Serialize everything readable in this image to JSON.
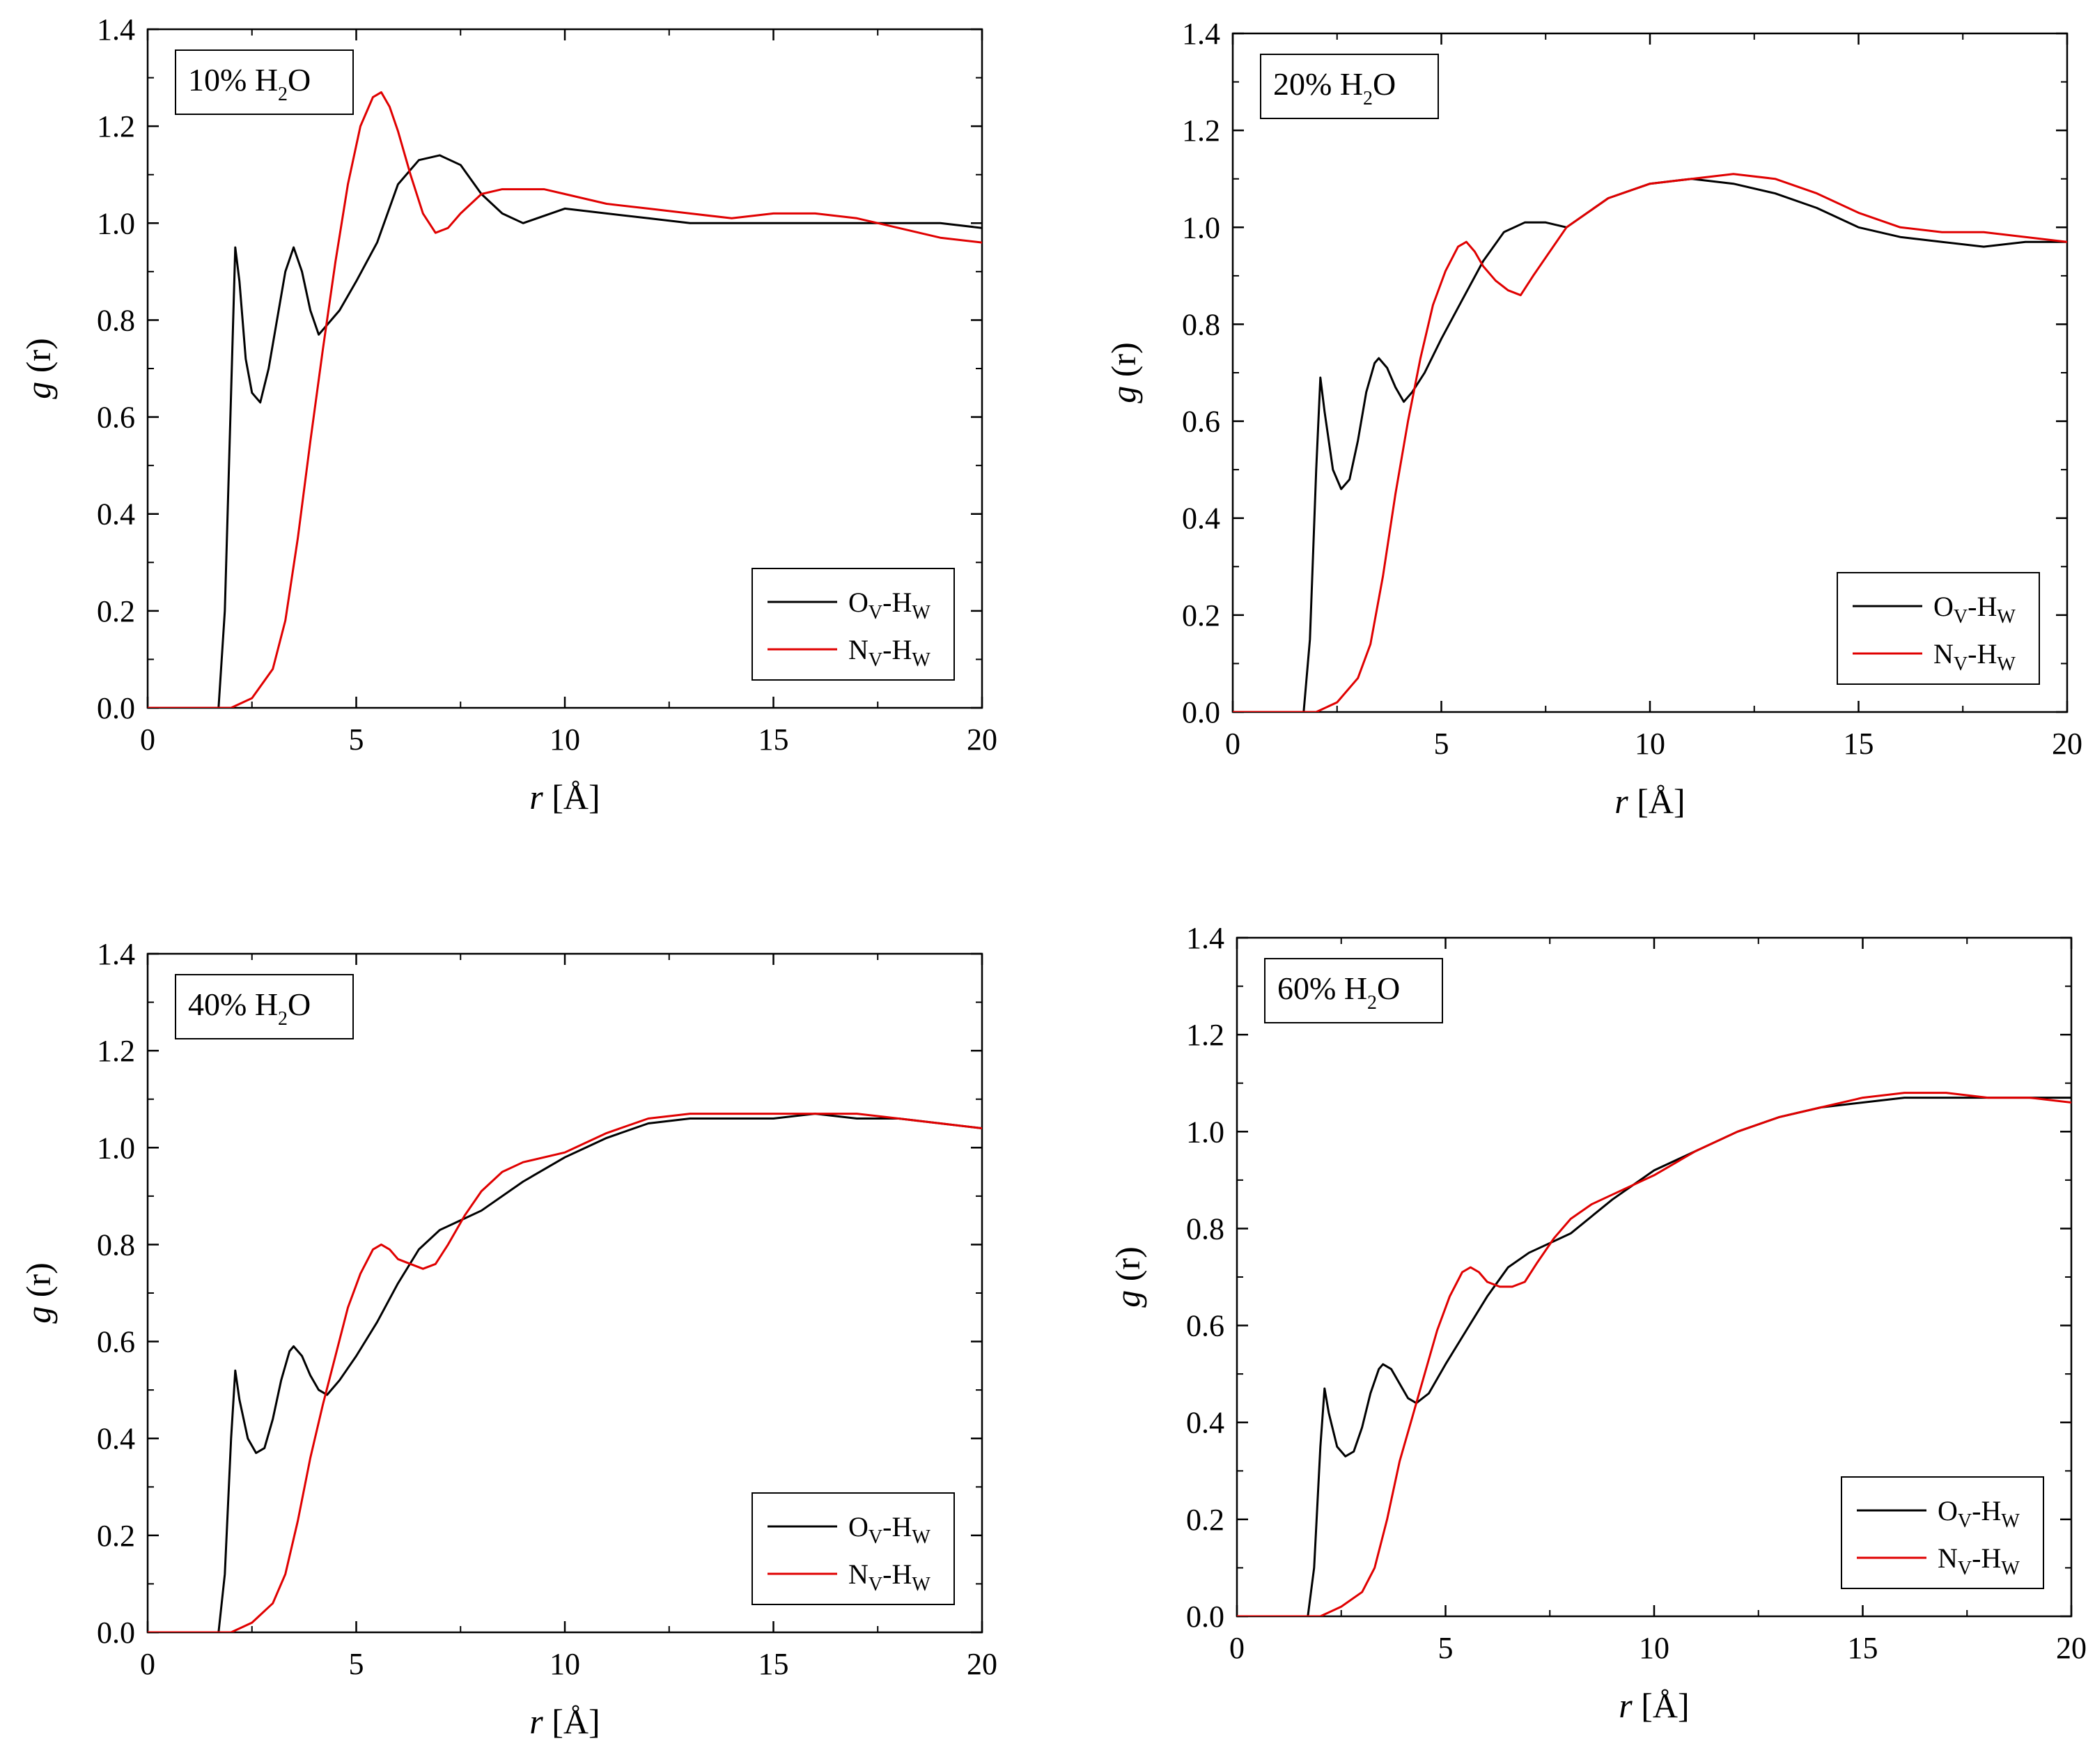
{
  "figure": {
    "colors": {
      "O_series": "#000000",
      "N_series": "#e00000",
      "axis": "#000000"
    },
    "legend_position": "bottom-right",
    "panel_label_position": "top-left"
  },
  "chart_data": [
    {
      "type": "line",
      "panel_label": {
        "main": "10% H",
        "sub": "2",
        "tail": "O"
      },
      "xlabel": {
        "italic": "r",
        "rest": " [Å]"
      },
      "ylabel": {
        "italic": "g",
        "rest": " (r)"
      },
      "xlim": [
        0,
        20
      ],
      "ylim": [
        0,
        1.4
      ],
      "xticks": [
        "0",
        "5",
        "10",
        "15",
        "20"
      ],
      "yticks": [
        "0.0",
        "0.2",
        "0.4",
        "0.6",
        "0.8",
        "1.0",
        "1.2",
        "1.4"
      ],
      "series": [
        {
          "name": "OV-HW",
          "legend": {
            "a": "O",
            "a_sub": "V",
            "b": "-H",
            "b_sub": "W"
          },
          "color": "#000000",
          "x": [
            0,
            1.7,
            1.85,
            2.0,
            2.1,
            2.2,
            2.35,
            2.5,
            2.7,
            2.9,
            3.1,
            3.3,
            3.5,
            3.7,
            3.9,
            4.1,
            4.3,
            4.6,
            5.0,
            5.5,
            6.0,
            6.5,
            7.0,
            7.5,
            8.0,
            8.5,
            9.0,
            10.0,
            11.0,
            12.0,
            13.0,
            14.0,
            15.0,
            16.0,
            17.0,
            18.0,
            19.0,
            20.0
          ],
          "y": [
            0,
            0,
            0.2,
            0.65,
            0.95,
            0.88,
            0.72,
            0.65,
            0.63,
            0.7,
            0.8,
            0.9,
            0.95,
            0.9,
            0.82,
            0.77,
            0.79,
            0.82,
            0.88,
            0.96,
            1.08,
            1.13,
            1.14,
            1.12,
            1.06,
            1.02,
            1.0,
            1.03,
            1.02,
            1.01,
            1.0,
            1.0,
            1.0,
            1.0,
            1.0,
            1.0,
            1.0,
            0.99
          ]
        },
        {
          "name": "NV-HW",
          "legend": {
            "a": "N",
            "a_sub": "V",
            "b": "-H",
            "b_sub": "W"
          },
          "color": "#e00000",
          "x": [
            0,
            2.0,
            2.5,
            3.0,
            3.3,
            3.6,
            3.9,
            4.2,
            4.5,
            4.8,
            5.1,
            5.4,
            5.6,
            5.8,
            6.0,
            6.3,
            6.6,
            6.9,
            7.2,
            7.5,
            8.0,
            8.5,
            9.0,
            9.5,
            10.0,
            11.0,
            12.0,
            13.0,
            14.0,
            15.0,
            16.0,
            17.0,
            18.0,
            19.0,
            20.0
          ],
          "y": [
            0,
            0,
            0.02,
            0.08,
            0.18,
            0.35,
            0.55,
            0.74,
            0.92,
            1.08,
            1.2,
            1.26,
            1.27,
            1.24,
            1.19,
            1.1,
            1.02,
            0.98,
            0.99,
            1.02,
            1.06,
            1.07,
            1.07,
            1.07,
            1.06,
            1.04,
            1.03,
            1.02,
            1.01,
            1.02,
            1.02,
            1.01,
            0.99,
            0.97,
            0.96
          ]
        }
      ]
    },
    {
      "type": "line",
      "panel_label": {
        "main": "20% H",
        "sub": "2",
        "tail": "O"
      },
      "xlabel": {
        "italic": "r",
        "rest": " [Å]"
      },
      "ylabel": {
        "italic": "g",
        "rest": " (r)"
      },
      "xlim": [
        0,
        20
      ],
      "ylim": [
        0,
        1.4
      ],
      "xticks": [
        "0",
        "5",
        "10",
        "15",
        "20"
      ],
      "yticks": [
        "0.0",
        "0.2",
        "0.4",
        "0.6",
        "0.8",
        "1.0",
        "1.2",
        "1.4"
      ],
      "series": [
        {
          "name": "OV-HW",
          "legend": {
            "a": "O",
            "a_sub": "V",
            "b": "-H",
            "b_sub": "W"
          },
          "color": "#000000",
          "x": [
            0,
            1.7,
            1.85,
            2.0,
            2.1,
            2.2,
            2.4,
            2.6,
            2.8,
            3.0,
            3.2,
            3.4,
            3.5,
            3.7,
            3.9,
            4.1,
            4.3,
            4.6,
            5.0,
            5.5,
            6.0,
            6.5,
            7.0,
            7.5,
            8.0,
            9.0,
            10.0,
            11.0,
            12.0,
            13.0,
            14.0,
            15.0,
            16.0,
            17.0,
            18.0,
            19.0,
            20.0
          ],
          "y": [
            0,
            0,
            0.15,
            0.5,
            0.69,
            0.62,
            0.5,
            0.46,
            0.48,
            0.56,
            0.66,
            0.72,
            0.73,
            0.71,
            0.67,
            0.64,
            0.66,
            0.7,
            0.77,
            0.85,
            0.93,
            0.99,
            1.01,
            1.01,
            1.0,
            1.06,
            1.09,
            1.1,
            1.09,
            1.07,
            1.04,
            1.0,
            0.98,
            0.97,
            0.96,
            0.97,
            0.97
          ]
        },
        {
          "name": "NV-HW",
          "legend": {
            "a": "N",
            "a_sub": "V",
            "b": "-H",
            "b_sub": "W"
          },
          "color": "#e00000",
          "x": [
            0,
            2.0,
            2.5,
            3.0,
            3.3,
            3.6,
            3.9,
            4.2,
            4.5,
            4.8,
            5.1,
            5.4,
            5.6,
            5.8,
            6.0,
            6.3,
            6.6,
            6.9,
            7.2,
            7.6,
            8.0,
            9.0,
            10.0,
            11.0,
            12.0,
            13.0,
            14.0,
            15.0,
            16.0,
            17.0,
            18.0,
            19.0,
            20.0
          ],
          "y": [
            0,
            0,
            0.02,
            0.07,
            0.14,
            0.28,
            0.45,
            0.6,
            0.73,
            0.84,
            0.91,
            0.96,
            0.97,
            0.95,
            0.92,
            0.89,
            0.87,
            0.86,
            0.9,
            0.95,
            1.0,
            1.06,
            1.09,
            1.1,
            1.11,
            1.1,
            1.07,
            1.03,
            1.0,
            0.99,
            0.99,
            0.98,
            0.97
          ]
        }
      ]
    },
    {
      "type": "line",
      "panel_label": {
        "main": "40% H",
        "sub": "2",
        "tail": "O"
      },
      "xlabel": {
        "italic": "r",
        "rest": " [Å]"
      },
      "ylabel": {
        "italic": "g",
        "rest": " (r)"
      },
      "xlim": [
        0,
        20
      ],
      "ylim": [
        0,
        1.4
      ],
      "xticks": [
        "0",
        "5",
        "10",
        "15",
        "20"
      ],
      "yticks": [
        "0.0",
        "0.2",
        "0.4",
        "0.6",
        "0.8",
        "1.0",
        "1.2",
        "1.4"
      ],
      "series": [
        {
          "name": "OV-HW",
          "legend": {
            "a": "O",
            "a_sub": "V",
            "b": "-H",
            "b_sub": "W"
          },
          "color": "#000000",
          "x": [
            0,
            1.7,
            1.85,
            2.0,
            2.1,
            2.2,
            2.4,
            2.6,
            2.8,
            3.0,
            3.2,
            3.4,
            3.5,
            3.7,
            3.9,
            4.1,
            4.3,
            4.6,
            5.0,
            5.5,
            6.0,
            6.5,
            7.0,
            7.5,
            8.0,
            9.0,
            10.0,
            11.0,
            12.0,
            13.0,
            14.0,
            15.0,
            16.0,
            17.0,
            18.0,
            19.0,
            20.0
          ],
          "y": [
            0,
            0,
            0.12,
            0.4,
            0.54,
            0.48,
            0.4,
            0.37,
            0.38,
            0.44,
            0.52,
            0.58,
            0.59,
            0.57,
            0.53,
            0.5,
            0.49,
            0.52,
            0.57,
            0.64,
            0.72,
            0.79,
            0.83,
            0.85,
            0.87,
            0.93,
            0.98,
            1.02,
            1.05,
            1.06,
            1.06,
            1.06,
            1.07,
            1.06,
            1.06,
            1.05,
            1.04
          ]
        },
        {
          "name": "NV-HW",
          "legend": {
            "a": "N",
            "a_sub": "V",
            "b": "-H",
            "b_sub": "W"
          },
          "color": "#e00000",
          "x": [
            0,
            2.0,
            2.5,
            3.0,
            3.3,
            3.6,
            3.9,
            4.2,
            4.5,
            4.8,
            5.1,
            5.4,
            5.6,
            5.8,
            6.0,
            6.3,
            6.6,
            6.9,
            7.2,
            7.6,
            8.0,
            8.5,
            9.0,
            10.0,
            11.0,
            12.0,
            13.0,
            14.0,
            15.0,
            16.0,
            17.0,
            18.0,
            19.0,
            20.0
          ],
          "y": [
            0,
            0,
            0.02,
            0.06,
            0.12,
            0.23,
            0.36,
            0.47,
            0.57,
            0.67,
            0.74,
            0.79,
            0.8,
            0.79,
            0.77,
            0.76,
            0.75,
            0.76,
            0.8,
            0.86,
            0.91,
            0.95,
            0.97,
            0.99,
            1.03,
            1.06,
            1.07,
            1.07,
            1.07,
            1.07,
            1.07,
            1.06,
            1.05,
            1.04
          ]
        }
      ]
    },
    {
      "type": "line",
      "panel_label": {
        "main": "60% H",
        "sub": "2",
        "tail": "O"
      },
      "xlabel": {
        "italic": "r",
        "rest": " [Å]"
      },
      "ylabel": {
        "italic": "g",
        "rest": " (r)"
      },
      "xlim": [
        0,
        20
      ],
      "ylim": [
        0,
        1.4
      ],
      "xticks": [
        "0",
        "5",
        "10",
        "15",
        "20"
      ],
      "yticks": [
        "0.0",
        "0.2",
        "0.4",
        "0.6",
        "0.8",
        "1.0",
        "1.2",
        "1.4"
      ],
      "series": [
        {
          "name": "OV-HW",
          "legend": {
            "a": "O",
            "a_sub": "V",
            "b": "-H",
            "b_sub": "W"
          },
          "color": "#000000",
          "x": [
            0,
            1.7,
            1.85,
            2.0,
            2.1,
            2.2,
            2.4,
            2.6,
            2.8,
            3.0,
            3.2,
            3.4,
            3.5,
            3.7,
            3.9,
            4.1,
            4.3,
            4.6,
            5.0,
            5.5,
            6.0,
            6.5,
            7.0,
            7.5,
            8.0,
            9.0,
            10.0,
            11.0,
            12.0,
            13.0,
            14.0,
            15.0,
            16.0,
            17.0,
            18.0,
            19.0,
            20.0
          ],
          "y": [
            0,
            0,
            0.1,
            0.35,
            0.47,
            0.42,
            0.35,
            0.33,
            0.34,
            0.39,
            0.46,
            0.51,
            0.52,
            0.51,
            0.48,
            0.45,
            0.44,
            0.46,
            0.52,
            0.59,
            0.66,
            0.72,
            0.75,
            0.77,
            0.79,
            0.86,
            0.92,
            0.96,
            1.0,
            1.03,
            1.05,
            1.06,
            1.07,
            1.07,
            1.07,
            1.07,
            1.07
          ]
        },
        {
          "name": "NV-HW",
          "legend": {
            "a": "N",
            "a_sub": "V",
            "b": "-H",
            "b_sub": "W"
          },
          "color": "#e00000",
          "x": [
            0,
            2.0,
            2.5,
            3.0,
            3.3,
            3.6,
            3.9,
            4.2,
            4.5,
            4.8,
            5.1,
            5.4,
            5.6,
            5.8,
            6.0,
            6.3,
            6.6,
            6.9,
            7.2,
            7.6,
            8.0,
            8.5,
            9.0,
            10.0,
            11.0,
            12.0,
            13.0,
            14.0,
            15.0,
            16.0,
            17.0,
            18.0,
            19.0,
            20.0
          ],
          "y": [
            0,
            0,
            0.02,
            0.05,
            0.1,
            0.2,
            0.32,
            0.41,
            0.5,
            0.59,
            0.66,
            0.71,
            0.72,
            0.71,
            0.69,
            0.68,
            0.68,
            0.69,
            0.73,
            0.78,
            0.82,
            0.85,
            0.87,
            0.91,
            0.96,
            1.0,
            1.03,
            1.05,
            1.07,
            1.08,
            1.08,
            1.07,
            1.07,
            1.06
          ]
        }
      ]
    }
  ]
}
